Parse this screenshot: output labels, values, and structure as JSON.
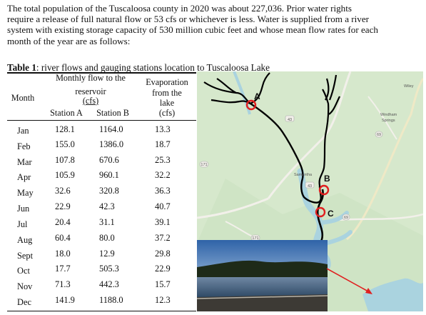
{
  "intro": {
    "lines": [
      "The total population of the Tuscaloosa county in 2020 was about 227,036. Prior water rights",
      "require a release of full natural flow or 53 cfs or whichever is less. Water is supplied from a river",
      "system with existing storage capacity of 530 million cubic feet and whose mean flow rates for each",
      "month of the year are as follows:"
    ]
  },
  "caption": {
    "label": "Table 1",
    "text": ": river flows and gauging stations location to Tuscaloosa Lake"
  },
  "table": {
    "headers": {
      "month": "Month",
      "monthly_flow_1": "Monthly flow to the",
      "monthly_flow_2": "reservoir",
      "monthly_flow_3": "(cfs)",
      "station_a": "Station A",
      "station_b": "Station B",
      "evap_1": "Evaporation",
      "evap_2": "from the",
      "evap_3": "lake",
      "evap_4": "(cfs)"
    },
    "rows": [
      {
        "month": "Jan",
        "a": "128.1",
        "b": "1164.0",
        "e": "13.3"
      },
      {
        "month": "Feb",
        "a": "155.0",
        "b": "1386.0",
        "e": "18.7"
      },
      {
        "month": "Mar",
        "a": "107.8",
        "b": "670.6",
        "e": "25.3"
      },
      {
        "month": "Apr",
        "a": "105.9",
        "b": "960.1",
        "e": "32.2"
      },
      {
        "month": "May",
        "a": "32.6",
        "b": "320.8",
        "e": "36.3"
      },
      {
        "month": "Jun",
        "a": "22.9",
        "b": "42.3",
        "e": "40.7"
      },
      {
        "month": "Jul",
        "a": "20.4",
        "b": "31.1",
        "e": "39.1"
      },
      {
        "month": "Aug",
        "a": "60.4",
        "b": "80.0",
        "e": "37.2"
      },
      {
        "month": "Sept",
        "a": "18.0",
        "b": "12.9",
        "e": "29.8"
      },
      {
        "month": "Oct",
        "a": "17.7",
        "b": "505.3",
        "e": "22.9"
      },
      {
        "month": "Nov",
        "a": "71.3",
        "b": "442.3",
        "e": "15.7"
      },
      {
        "month": "Dec",
        "a": "141.9",
        "b": "1188.0",
        "e": "12.3"
      }
    ]
  },
  "map": {
    "station_labels": [
      "A",
      "B",
      "C"
    ],
    "place_labels": {
      "wiley": "Wiley",
      "windham_1": "Windham",
      "windham_2": "Springs",
      "samantha": "Samantha"
    },
    "road_labels": [
      "43",
      "69",
      "171",
      "43",
      "69",
      "171"
    ],
    "colors": {
      "water": "#aad3df",
      "land": "#d8ead0",
      "river": "#000000",
      "marker": "#e02020",
      "arrow": "#e02020",
      "road": "#e8e0b0"
    }
  }
}
